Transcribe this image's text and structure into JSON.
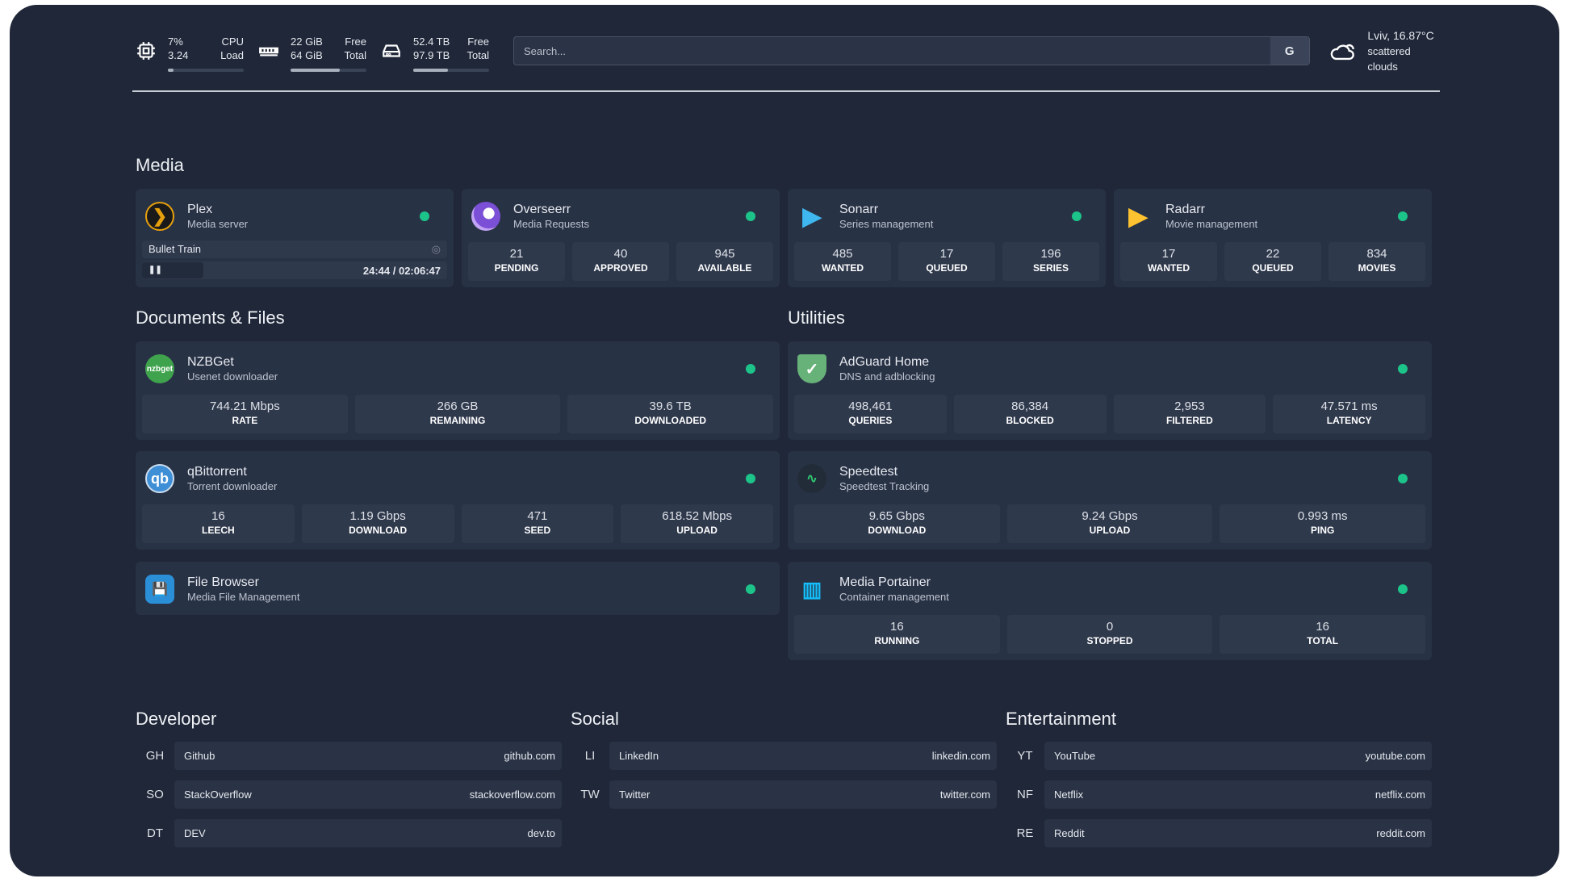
{
  "header": {
    "cpu": {
      "icon": "cpu-icon",
      "percent": "7%",
      "load": "3.24",
      "label1": "CPU",
      "label2": "Load",
      "fill_percent": 7
    },
    "memory": {
      "icon": "memory-icon",
      "free": "22 GiB",
      "total": "64 GiB",
      "label1": "Free",
      "label2": "Total",
      "fill_percent": 65
    },
    "disk": {
      "icon": "disk-icon",
      "free": "52.4 TB",
      "total": "97.9 TB",
      "label1": "Free",
      "label2": "Total",
      "fill_percent": 46
    },
    "search": {
      "placeholder": "Search...",
      "provider": "G"
    },
    "weather": {
      "icon": "cloud-icon",
      "location": "Lviv, 16.87°C",
      "condition": "scattered clouds"
    }
  },
  "sections": {
    "media": "Media",
    "docs": "Documents & Files",
    "utilities": "Utilities",
    "developer": "Developer",
    "social": "Social",
    "entertainment": "Entertainment"
  },
  "media": [
    {
      "name": "Plex",
      "sub": "Media server",
      "now_playing": {
        "title": "Bullet Train",
        "time": "24:44 / 02:06:47"
      }
    },
    {
      "name": "Overseerr",
      "sub": "Media Requests",
      "stats": [
        {
          "v": "21",
          "k": "PENDING"
        },
        {
          "v": "40",
          "k": "APPROVED"
        },
        {
          "v": "945",
          "k": "AVAILABLE"
        }
      ]
    },
    {
      "name": "Sonarr",
      "sub": "Series management",
      "stats": [
        {
          "v": "485",
          "k": "WANTED"
        },
        {
          "v": "17",
          "k": "QUEUED"
        },
        {
          "v": "196",
          "k": "SERIES"
        }
      ]
    },
    {
      "name": "Radarr",
      "sub": "Movie management",
      "stats": [
        {
          "v": "17",
          "k": "WANTED"
        },
        {
          "v": "22",
          "k": "QUEUED"
        },
        {
          "v": "834",
          "k": "MOVIES"
        }
      ]
    }
  ],
  "docs": [
    {
      "name": "NZBGet",
      "sub": "Usenet downloader",
      "logo": "nzbget",
      "stats": [
        {
          "v": "744.21 Mbps",
          "k": "RATE"
        },
        {
          "v": "266 GB",
          "k": "REMAINING"
        },
        {
          "v": "39.6 TB",
          "k": "DOWNLOADED"
        }
      ]
    },
    {
      "name": "qBittorrent",
      "sub": "Torrent downloader",
      "logo": "qb",
      "stats": [
        {
          "v": "16",
          "k": "LEECH"
        },
        {
          "v": "1.19 Gbps",
          "k": "DOWNLOAD"
        },
        {
          "v": "471",
          "k": "SEED"
        },
        {
          "v": "618.52 Mbps",
          "k": "UPLOAD"
        }
      ]
    },
    {
      "name": "File Browser",
      "sub": "Media File Management"
    }
  ],
  "utilities": [
    {
      "name": "AdGuard Home",
      "sub": "DNS and adblocking",
      "stats": [
        {
          "v": "498,461",
          "k": "QUERIES"
        },
        {
          "v": "86,384",
          "k": "BLOCKED"
        },
        {
          "v": "2,953",
          "k": "FILTERED"
        },
        {
          "v": "47.571 ms",
          "k": "LATENCY"
        }
      ]
    },
    {
      "name": "Speedtest",
      "sub": "Speedtest Tracking",
      "stats": [
        {
          "v": "9.65 Gbps",
          "k": "DOWNLOAD"
        },
        {
          "v": "9.24 Gbps",
          "k": "UPLOAD"
        },
        {
          "v": "0.993 ms",
          "k": "PING"
        }
      ]
    },
    {
      "name": "Media Portainer",
      "sub": "Container management",
      "stats": [
        {
          "v": "16",
          "k": "RUNNING"
        },
        {
          "v": "0",
          "k": "STOPPED"
        },
        {
          "v": "16",
          "k": "TOTAL"
        }
      ]
    }
  ],
  "bookmarks": {
    "developer": [
      {
        "ab": "GH",
        "name": "Github",
        "url": "github.com"
      },
      {
        "ab": "SO",
        "name": "StackOverflow",
        "url": "stackoverflow.com"
      },
      {
        "ab": "DT",
        "name": "DEV",
        "url": "dev.to"
      }
    ],
    "social": [
      {
        "ab": "LI",
        "name": "LinkedIn",
        "url": "linkedin.com"
      },
      {
        "ab": "TW",
        "name": "Twitter",
        "url": "twitter.com"
      }
    ],
    "entertainment": [
      {
        "ab": "YT",
        "name": "YouTube",
        "url": "youtube.com"
      },
      {
        "ab": "NF",
        "name": "Netflix",
        "url": "netflix.com"
      },
      {
        "ab": "RE",
        "name": "Reddit",
        "url": "reddit.com"
      }
    ]
  },
  "colors": {
    "background": "#1f2738",
    "card": "#283245",
    "status_ok": "#1cc48a"
  }
}
